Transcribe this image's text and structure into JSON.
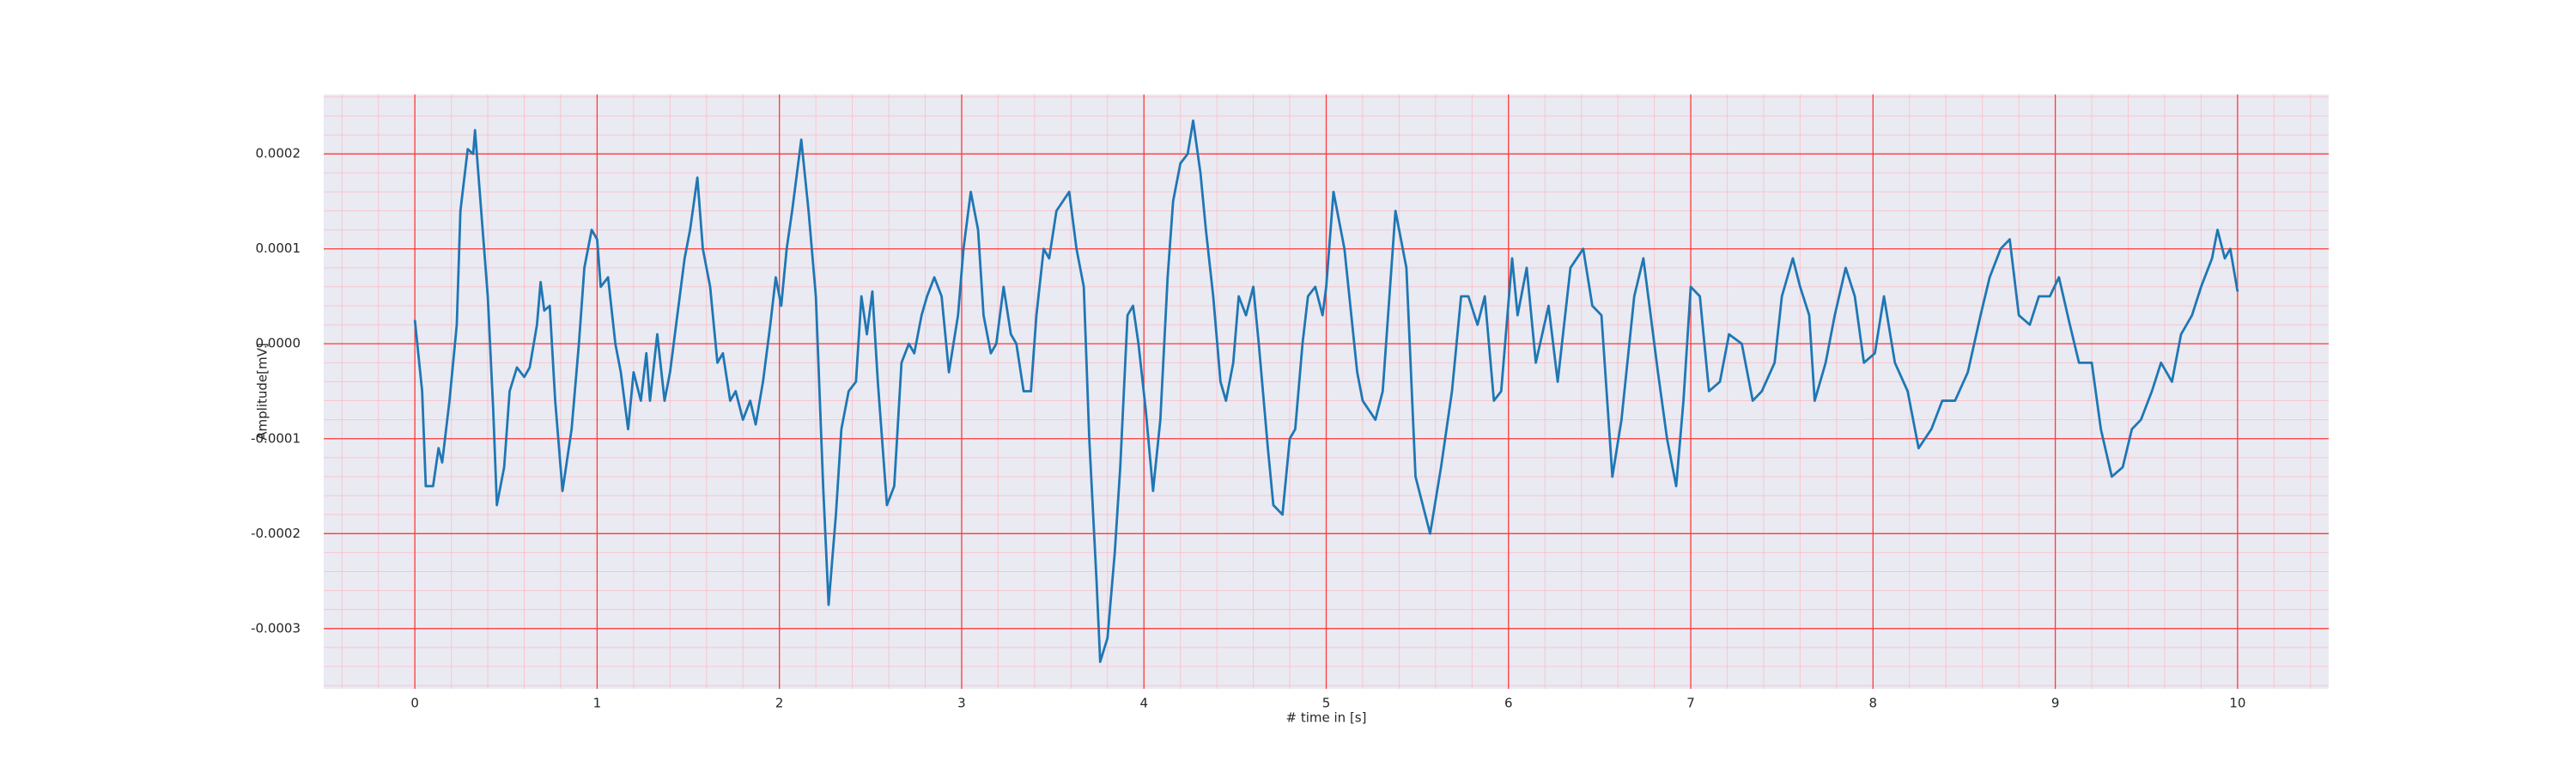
{
  "chart_data": {
    "type": "line",
    "xlabel": "# time in [s]",
    "ylabel": "Amplitude[mV]",
    "color": "#1f77b4",
    "grid": true,
    "minor_grid": true,
    "xlim": [
      -0.5,
      10.5
    ],
    "xticks": [
      0,
      1,
      2,
      3,
      4,
      5,
      6,
      7,
      8,
      9,
      10
    ],
    "ylim": [
      -0.0003635,
      0.0002626
    ],
    "yticks": [
      -0.0003,
      -0.0002,
      -0.0001,
      {
        "value": 0,
        "label": "0.0000"
      },
      0.0001,
      0.0002
    ],
    "x": [
      0,
      0.04,
      0.06,
      0.1,
      0.13,
      0.15,
      0.19,
      0.23,
      0.25,
      0.29,
      0.32,
      0.33,
      0.36,
      0.4,
      0.43,
      0.45,
      0.49,
      0.52,
      0.56,
      0.6,
      0.63,
      0.67,
      0.69,
      0.71,
      0.74,
      0.77,
      0.81,
      0.86,
      0.9,
      0.93,
      0.97,
      1.0,
      1.02,
      1.06,
      1.1,
      1.13,
      1.17,
      1.2,
      1.24,
      1.27,
      1.29,
      1.33,
      1.37,
      1.4,
      1.44,
      1.48,
      1.51,
      1.55,
      1.58,
      1.62,
      1.66,
      1.69,
      1.73,
      1.76,
      1.8,
      1.84,
      1.87,
      1.91,
      1.95,
      1.98,
      2.01,
      2.04,
      2.07,
      2.12,
      2.16,
      2.2,
      2.24,
      2.27,
      2.31,
      2.34,
      2.38,
      2.42,
      2.45,
      2.48,
      2.51,
      2.54,
      2.59,
      2.63,
      2.67,
      2.71,
      2.74,
      2.78,
      2.81,
      2.85,
      2.89,
      2.93,
      2.98,
      3.01,
      3.05,
      3.09,
      3.12,
      3.16,
      3.19,
      3.23,
      3.27,
      3.3,
      3.34,
      3.38,
      3.41,
      3.45,
      3.48,
      3.52,
      3.59,
      3.63,
      3.67,
      3.7,
      3.74,
      3.76,
      3.8,
      3.84,
      3.87,
      3.91,
      3.94,
      3.97,
      4.01,
      4.05,
      4.09,
      4.13,
      4.16,
      4.2,
      4.24,
      4.27,
      4.31,
      4.34,
      4.38,
      4.42,
      4.45,
      4.49,
      4.52,
      4.56,
      4.6,
      4.63,
      4.68,
      4.71,
      4.76,
      4.8,
      4.83,
      4.87,
      4.9,
      4.94,
      4.98,
      5.0,
      5.04,
      5.1,
      5.17,
      5.2,
      5.27,
      5.31,
      5.38,
      5.44,
      5.49,
      5.57,
      5.63,
      5.69,
      5.74,
      5.78,
      5.83,
      5.87,
      5.92,
      5.96,
      6.02,
      6.05,
      6.1,
      6.15,
      6.22,
      6.27,
      6.34,
      6.41,
      6.46,
      6.51,
      6.57,
      6.62,
      6.69,
      6.74,
      6.78,
      6.82,
      6.87,
      6.92,
      6.96,
      7.0,
      7.05,
      7.1,
      7.16,
      7.21,
      7.28,
      7.34,
      7.39,
      7.46,
      7.5,
      7.56,
      7.6,
      7.65,
      7.68,
      7.74,
      7.79,
      7.85,
      7.9,
      7.95,
      8.01,
      8.06,
      8.12,
      8.19,
      8.25,
      8.32,
      8.38,
      8.45,
      8.52,
      8.59,
      8.64,
      8.7,
      8.75,
      8.8,
      8.86,
      8.91,
      8.97,
      9.02,
      9.08,
      9.13,
      9.2,
      9.25,
      9.31,
      9.37,
      9.42,
      9.47,
      9.53,
      9.58,
      9.64,
      9.69,
      9.75,
      9.8,
      9.86,
      9.89,
      9.93,
      9.96,
      10.0
    ],
    "values": [
      2.5e-05,
      -5e-05,
      -0.00015,
      -0.00015,
      -0.00011,
      -0.000125,
      -6e-05,
      2e-05,
      0.00014,
      0.000205,
      0.0002,
      0.000225,
      0.00015,
      5e-05,
      -7e-05,
      -0.00017,
      -0.00013,
      -5e-05,
      -2.5e-05,
      -3.5e-05,
      -2.5e-05,
      2e-05,
      6.5e-05,
      3.5e-05,
      4e-05,
      -6e-05,
      -0.000155,
      -9e-05,
      0,
      8e-05,
      0.00012,
      0.00011,
      6e-05,
      7e-05,
      0,
      -3e-05,
      -9e-05,
      -3e-05,
      -6e-05,
      -1e-05,
      -6e-05,
      1e-05,
      -6e-05,
      -3e-05,
      3e-05,
      9e-05,
      0.00012,
      0.000175,
      0.0001,
      6e-05,
      -2e-05,
      -1e-05,
      -6e-05,
      -5e-05,
      -8e-05,
      -6e-05,
      -8.5e-05,
      -4e-05,
      2e-05,
      7e-05,
      4e-05,
      0.0001,
      0.00014,
      0.000215,
      0.00014,
      5e-05,
      -0.00015,
      -0.000275,
      -0.00018,
      -9e-05,
      -5e-05,
      -4e-05,
      5e-05,
      1e-05,
      5.5e-05,
      -4e-05,
      -0.00017,
      -0.00015,
      -2e-05,
      0,
      -1e-05,
      3e-05,
      5e-05,
      7e-05,
      5e-05,
      -3e-05,
      3e-05,
      0.0001,
      0.00016,
      0.00012,
      3e-05,
      -1e-05,
      0,
      6e-05,
      1e-05,
      0,
      -5e-05,
      -5e-05,
      3e-05,
      0.0001,
      9e-05,
      0.00014,
      0.00016,
      0.0001,
      6e-05,
      -0.0001,
      -0.00025,
      -0.000335,
      -0.00031,
      -0.00022,
      -0.00013,
      3e-05,
      4e-05,
      0,
      -7e-05,
      -0.000155,
      -8e-05,
      7e-05,
      0.00015,
      0.00019,
      0.0002,
      0.000235,
      0.00018,
      0.00012,
      5e-05,
      -4e-05,
      -6e-05,
      -2e-05,
      5e-05,
      3e-05,
      6e-05,
      0,
      -0.00011,
      -0.00017,
      -0.00018,
      -0.0001,
      -9e-05,
      0,
      5e-05,
      6e-05,
      3e-05,
      6e-05,
      0.00016,
      0.0001,
      -3e-05,
      -6e-05,
      -8e-05,
      -5e-05,
      0.00014,
      8e-05,
      -0.00014,
      -0.0002,
      -0.00013,
      -5e-05,
      5e-05,
      5e-05,
      2e-05,
      5e-05,
      -6e-05,
      -5e-05,
      9e-05,
      3e-05,
      8e-05,
      -2e-05,
      4e-05,
      -4e-05,
      8e-05,
      0.0001,
      4e-05,
      3e-05,
      -0.00014,
      -8e-05,
      5e-05,
      9e-05,
      3e-05,
      -3e-05,
      -0.0001,
      -0.00015,
      -6e-05,
      6e-05,
      5e-05,
      -5e-05,
      -4e-05,
      1e-05,
      0,
      -6e-05,
      -5e-05,
      -2e-05,
      5e-05,
      9e-05,
      6e-05,
      3e-05,
      -6e-05,
      -2e-05,
      3e-05,
      8e-05,
      5e-05,
      -2e-05,
      -1e-05,
      5e-05,
      -2e-05,
      -5e-05,
      -0.00011,
      -9e-05,
      -6e-05,
      -6e-05,
      -3e-05,
      3e-05,
      7e-05,
      0.0001,
      0.00011,
      3e-05,
      2e-05,
      5e-05,
      5e-05,
      7e-05,
      2e-05,
      -2e-05,
      -2e-05,
      -9e-05,
      -0.00014,
      -0.00013,
      -9e-05,
      -8e-05,
      -5e-05,
      -2e-05,
      -4e-05,
      1e-05,
      3e-05,
      6e-05,
      9e-05,
      0.00012,
      9e-05,
      0.0001,
      5.5e-05
    ]
  }
}
